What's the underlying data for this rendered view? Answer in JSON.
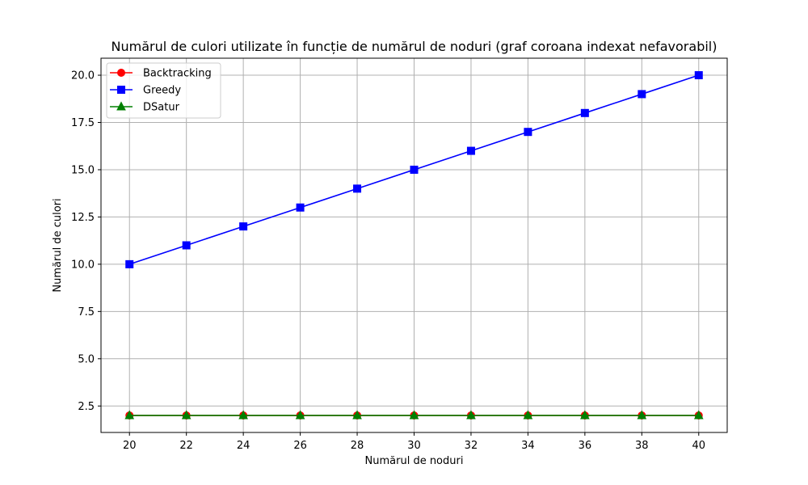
{
  "chart_data": {
    "type": "line",
    "title": "Numărul de culori utilizate în funcție de numărul de noduri (graf coroana indexat nefavorabil)",
    "xlabel": "Numărul de noduri",
    "ylabel": "Numărul de culori",
    "x": [
      20,
      22,
      24,
      26,
      28,
      30,
      32,
      34,
      36,
      38,
      40
    ],
    "xlim": [
      19,
      41
    ],
    "ylim": [
      1.1,
      20.9
    ],
    "xticks": [
      "20",
      "22",
      "24",
      "26",
      "28",
      "30",
      "32",
      "34",
      "36",
      "38",
      "40"
    ],
    "yticks": [
      "2.5",
      "5.0",
      "7.5",
      "10.0",
      "12.5",
      "15.0",
      "17.5",
      "20.0"
    ],
    "grid": true,
    "legend_position": "top-left",
    "series": [
      {
        "name": "Backtracking",
        "color": "#ff0000",
        "marker": "circle",
        "values": [
          2,
          2,
          2,
          2,
          2,
          2,
          2,
          2,
          2,
          2,
          2
        ]
      },
      {
        "name": "Greedy",
        "color": "#0000ff",
        "marker": "square",
        "values": [
          10,
          11,
          12,
          13,
          14,
          15,
          16,
          17,
          18,
          19,
          20
        ]
      },
      {
        "name": "DSatur",
        "color": "#008000",
        "marker": "triangle",
        "values": [
          2,
          2,
          2,
          2,
          2,
          2,
          2,
          2,
          2,
          2,
          2
        ]
      }
    ]
  }
}
